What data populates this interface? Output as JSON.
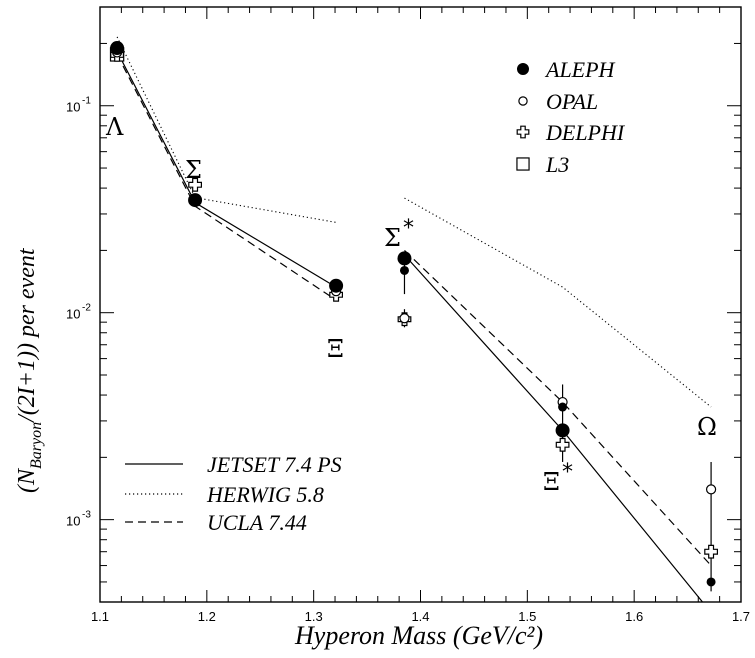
{
  "chart_data": {
    "type": "scatter",
    "xlabel": "Hyperon Mass (GeV/c²)",
    "ylabel": {
      "prefix": "(N",
      "sub": "Baryon",
      "suffix": "/(2I+1)) per event"
    },
    "xlim": [
      1.1,
      1.7
    ],
    "ylim": [
      0.0004,
      0.3
    ],
    "yscale": "log",
    "x_ticks": [
      "1.1",
      "1.2",
      "1.3",
      "1.4",
      "1.5",
      "1.6",
      "1.7"
    ],
    "y_tick_labels": [
      {
        "value": 0.1,
        "base": "10",
        "exp": "-1"
      },
      {
        "value": 0.01,
        "base": "10",
        "exp": "-2"
      },
      {
        "value": 0.001,
        "base": "10",
        "exp": "-3"
      }
    ],
    "particle_labels": [
      {
        "text": "Λ",
        "sup": ""
      },
      {
        "text": "Σ",
        "sup": ""
      },
      {
        "text": "Ξ",
        "sup": ""
      },
      {
        "text": "Σ",
        "sup": "*"
      },
      {
        "text": "Ξ",
        "sup": "*"
      },
      {
        "text": "Ω",
        "sup": ""
      }
    ],
    "measurements": [
      {
        "name": "ALEPH",
        "marker": "filled-circle",
        "points": [
          {
            "x": 1.116,
            "y": 0.19
          },
          {
            "x": 1.189,
            "y": 0.035
          },
          {
            "x": 1.321,
            "y": 0.0135
          },
          {
            "x": 1.385,
            "y": 0.0183
          },
          {
            "x": 1.385,
            "y": 0.016
          },
          {
            "x": 1.533,
            "y": 0.0027
          },
          {
            "x": 1.533,
            "y": 0.0035
          },
          {
            "x": 1.672,
            "y": 0.0005
          }
        ]
      },
      {
        "name": "OPAL",
        "marker": "open-circle",
        "points": [
          {
            "x": 1.116,
            "y": 0.181
          },
          {
            "x": 1.321,
            "y": 0.0127
          },
          {
            "x": 1.385,
            "y": 0.0094
          },
          {
            "x": 1.533,
            "y": 0.0037
          },
          {
            "x": 1.672,
            "y": 0.0014
          }
        ]
      },
      {
        "name": "DELPHI",
        "marker": "open-cross",
        "points": [
          {
            "x": 1.116,
            "y": 0.176
          },
          {
            "x": 1.189,
            "y": 0.0415
          },
          {
            "x": 1.321,
            "y": 0.0122
          },
          {
            "x": 1.385,
            "y": 0.0093
          },
          {
            "x": 1.533,
            "y": 0.0023
          },
          {
            "x": 1.672,
            "y": 0.0007
          }
        ]
      },
      {
        "name": "L3",
        "marker": "open-square",
        "points": [
          {
            "x": 1.116,
            "y": 0.177
          }
        ]
      }
    ],
    "models": [
      {
        "name": "JETSET 7.4 PS",
        "style": "solid",
        "segments": [
          [
            [
              1.116,
              0.183
            ],
            [
              1.189,
              0.034
            ],
            [
              1.321,
              0.0133
            ]
          ],
          [
            [
              1.385,
              0.019
            ],
            [
              1.533,
              0.0027
            ],
            [
              1.664,
              0.0004
            ]
          ]
        ]
      },
      {
        "name": "HERWIG 5.8",
        "style": "dotted",
        "segments": [
          [
            [
              1.116,
              0.215
            ],
            [
              1.189,
              0.036
            ],
            [
              1.321,
              0.0273
            ]
          ],
          [
            [
              1.385,
              0.0358
            ],
            [
              1.533,
              0.0133
            ],
            [
              1.672,
              0.0035
            ]
          ]
        ]
      },
      {
        "name": "UCLA 7.44",
        "style": "dashed",
        "segments": [
          [
            [
              1.116,
              0.177
            ],
            [
              1.189,
              0.0327
            ],
            [
              1.321,
              0.0115
            ]
          ],
          [
            [
              1.385,
              0.02
            ],
            [
              1.533,
              0.0037
            ],
            [
              1.672,
              0.0006
            ]
          ]
        ]
      }
    ],
    "error_bars": [
      {
        "x": 1.385,
        "y_low": 0.0123,
        "y_high": 0.0197
      },
      {
        "x": 1.385,
        "y_low": 0.0085,
        "y_high": 0.0104
      },
      {
        "x": 1.533,
        "y_low": 0.0019,
        "y_high": 0.0045
      },
      {
        "x": 1.672,
        "y_low": 0.00045,
        "y_high": 0.0019
      }
    ],
    "measurement_legend": [
      "ALEPH",
      "OPAL",
      "DELPHI",
      "L3"
    ],
    "model_legend": [
      "JETSET 7.4 PS",
      "HERWIG 5.8",
      "UCLA 7.44"
    ]
  }
}
